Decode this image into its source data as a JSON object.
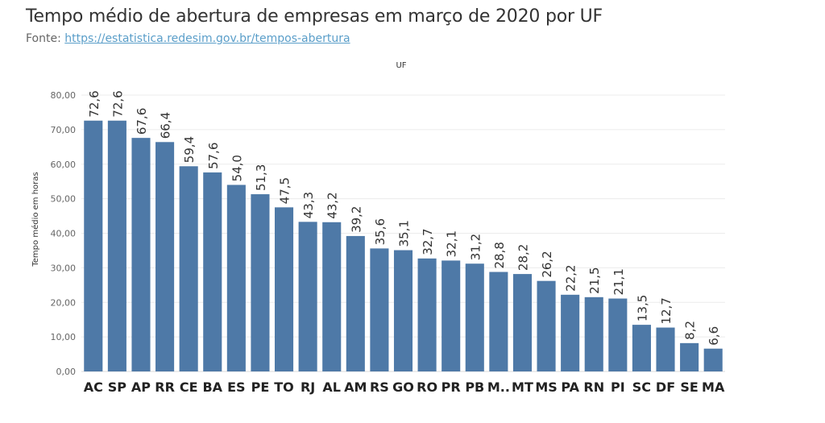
{
  "title": "Tempo médio de abertura de empresas em março de 2020 por UF",
  "source": {
    "prefix": "Fonte: ",
    "link": "https://estatistica.redesim.gov.br/tempos-abertura"
  },
  "colors": {
    "bar": "#4e79a7",
    "grid": "#ececec",
    "axis_text": "#666666",
    "label_text": "#333333"
  },
  "chart_data": {
    "type": "bar",
    "title": "Tempo médio de abertura de empresas em março de 2020 por UF",
    "xlabel": "UF",
    "ylabel": "Tempo médio em horas",
    "ylim": [
      0,
      80
    ],
    "yticks": [
      0,
      10,
      20,
      30,
      40,
      50,
      60,
      70,
      80
    ],
    "ytick_labels": [
      "0,00",
      "10,00",
      "20,00",
      "30,00",
      "40,00",
      "50,00",
      "60,00",
      "70,00",
      "80,00"
    ],
    "categories": [
      "AC",
      "SP",
      "AP",
      "RR",
      "CE",
      "BA",
      "ES",
      "PE",
      "TO",
      "RJ",
      "AL",
      "AM",
      "RS",
      "GO",
      "RO",
      "PR",
      "PB",
      "M..",
      "MT",
      "MS",
      "PA",
      "RN",
      "PI",
      "SC",
      "DF",
      "SE",
      "MA"
    ],
    "values": [
      72.6,
      72.6,
      67.6,
      66.4,
      59.4,
      57.6,
      54.0,
      51.3,
      47.5,
      43.3,
      43.2,
      39.2,
      35.6,
      35.1,
      32.7,
      32.1,
      31.2,
      28.8,
      28.2,
      26.2,
      22.2,
      21.5,
      21.1,
      13.5,
      12.7,
      8.2,
      6.6
    ],
    "value_labels": [
      "72,6",
      "72,6",
      "67,6",
      "66,4",
      "59,4",
      "57,6",
      "54,0",
      "51,3",
      "47,5",
      "43,3",
      "43,2",
      "39,2",
      "35,6",
      "35,1",
      "32,7",
      "32,1",
      "31,2",
      "28,8",
      "28,2",
      "26,2",
      "22,2",
      "21,5",
      "21,1",
      "13,5",
      "12,7",
      "8,2",
      "6,6"
    ],
    "grid": true
  }
}
